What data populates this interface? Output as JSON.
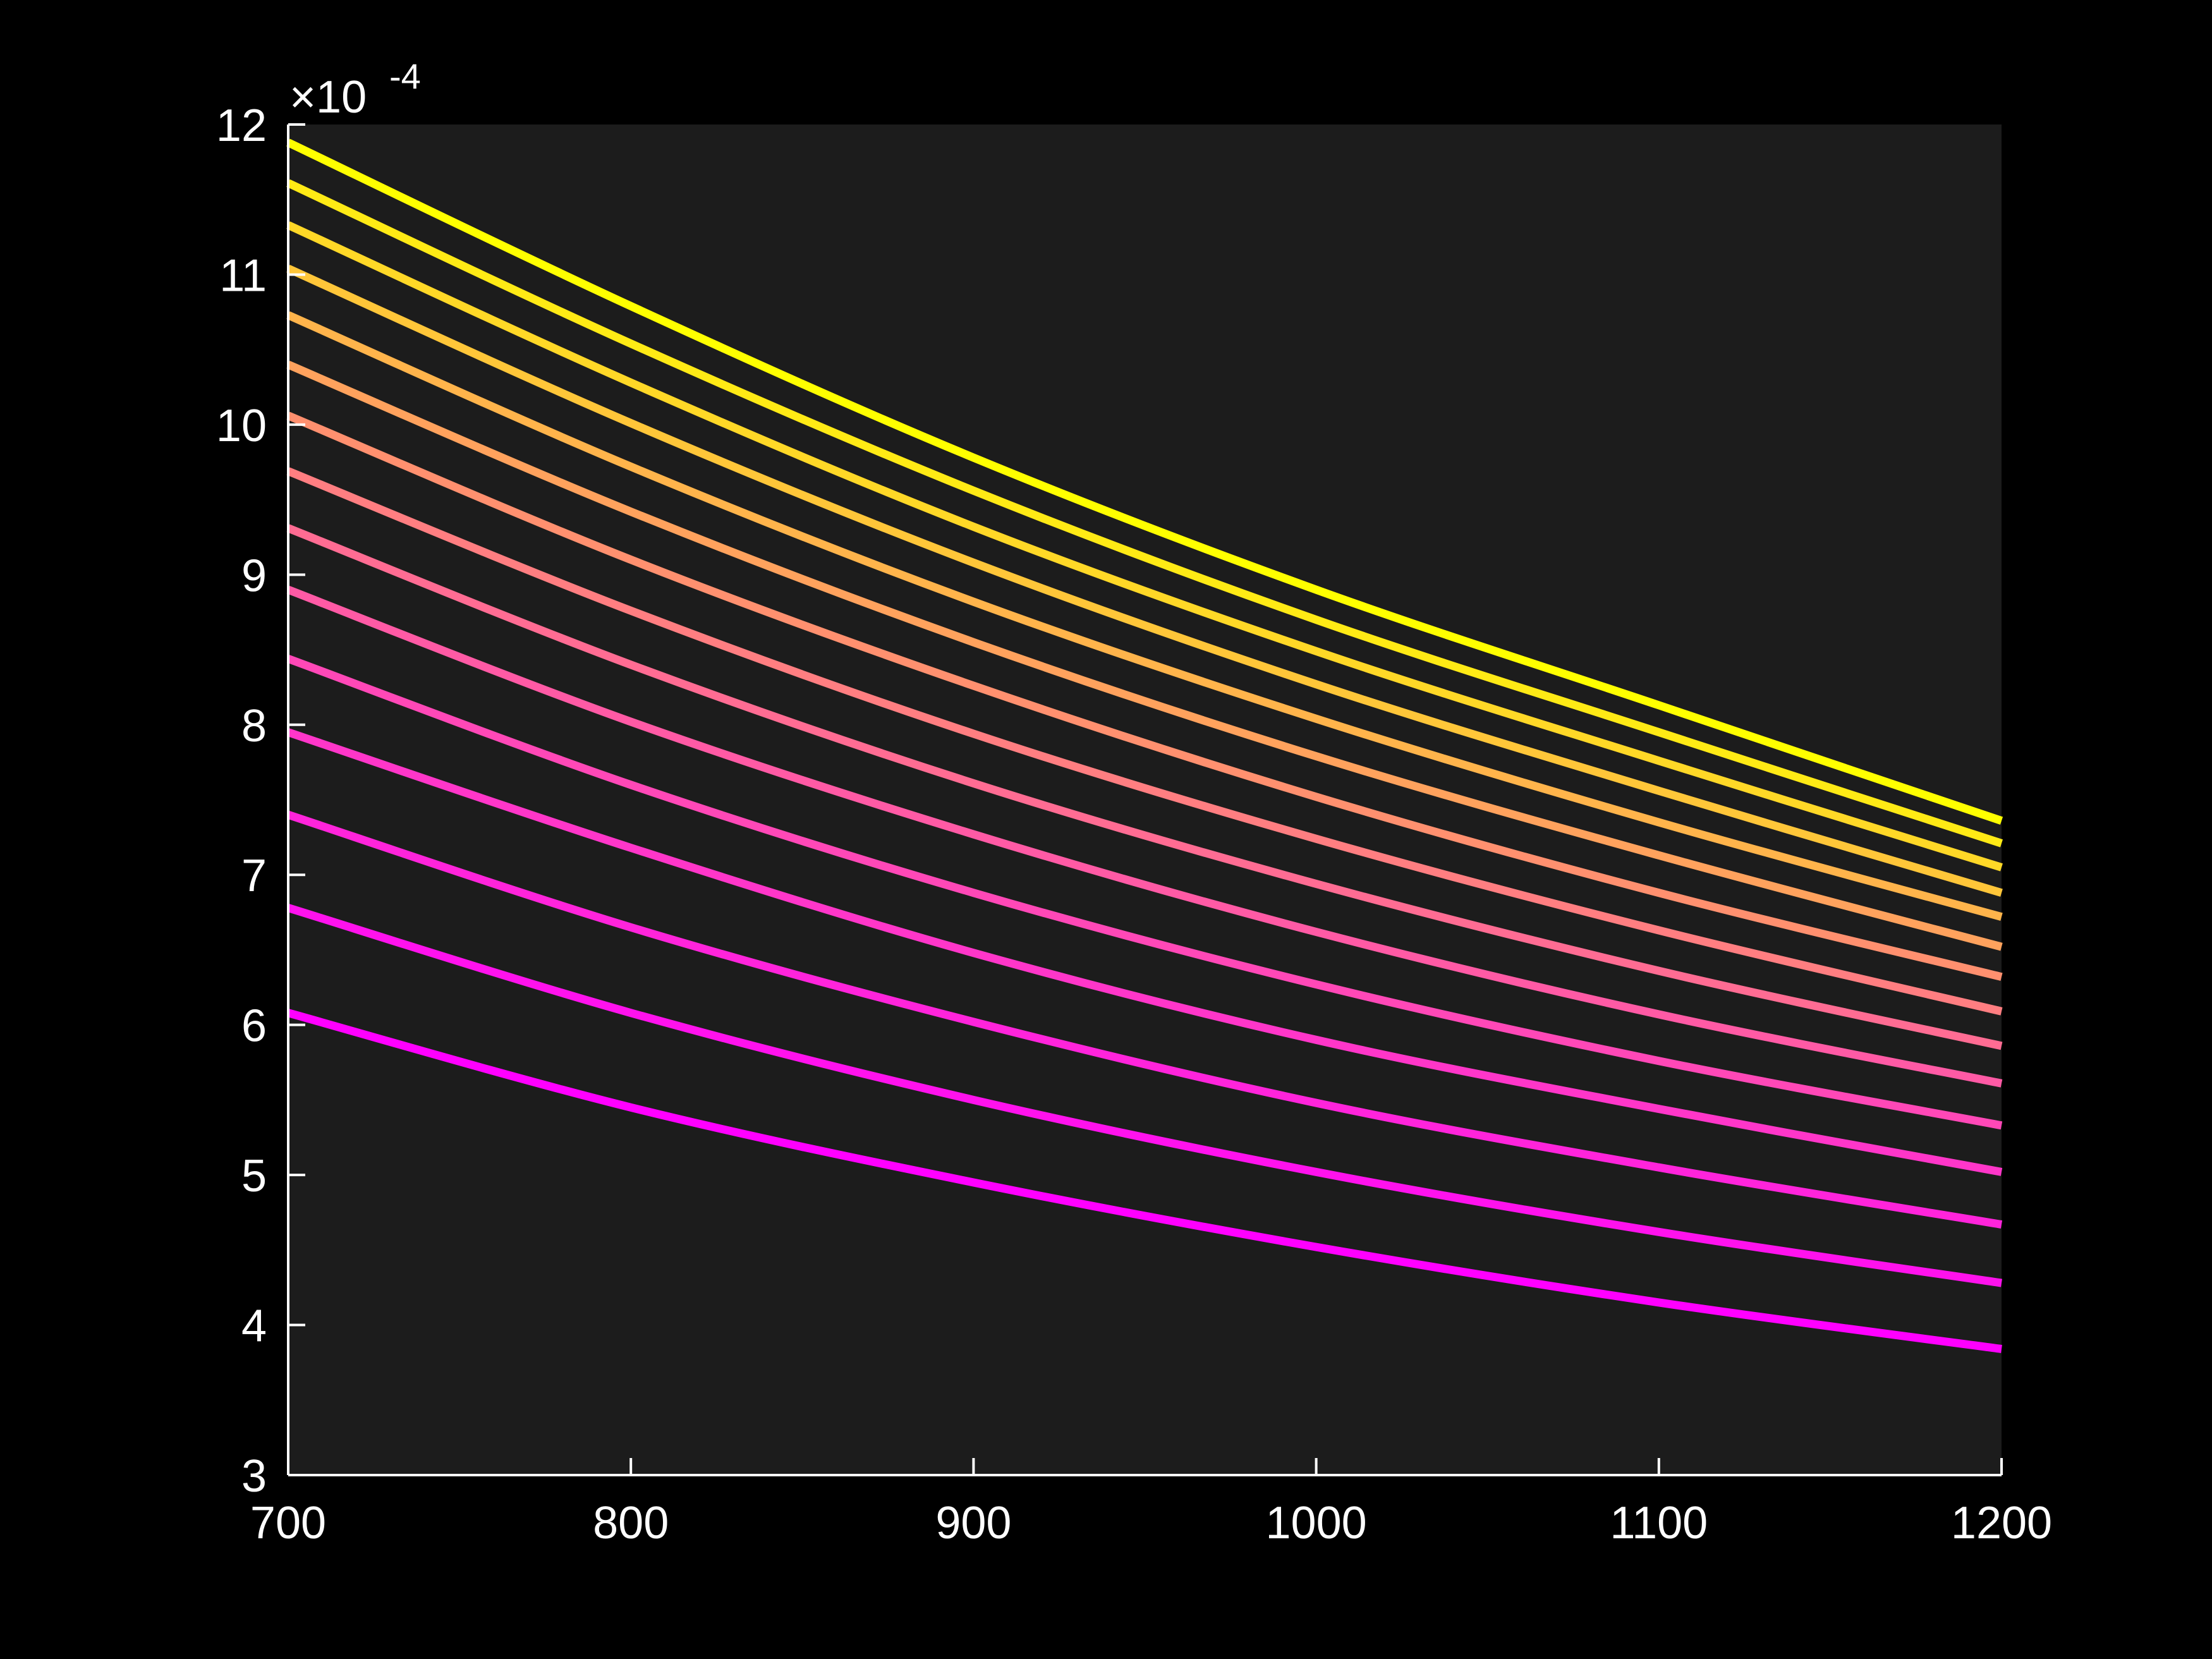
{
  "chart_data": {
    "type": "line",
    "title": "",
    "xlabel": "",
    "ylabel": "",
    "xlim": [
      700,
      1200
    ],
    "ylim": [
      3,
      12
    ],
    "y_multiplier": "×10",
    "y_exponent": "-4",
    "x_ticks": [
      "700",
      "800",
      "900",
      "1000",
      "1100",
      "1200"
    ],
    "y_ticks": [
      "3",
      "4",
      "5",
      "6",
      "7",
      "8",
      "9",
      "10",
      "11",
      "12"
    ],
    "grid": false,
    "legend": "none",
    "colors": {
      "background": "#000000",
      "axes_face": "#1c1c1c",
      "axis_line": "#ffffff"
    },
    "x": [
      700,
      800,
      900,
      1000,
      1100,
      1200
    ],
    "series": [
      {
        "color": "#ff00ff",
        "values": [
          6.08,
          5.45,
          4.95,
          4.52,
          4.15,
          3.84
        ]
      },
      {
        "color": "#ff12ed",
        "values": [
          6.78,
          6.08,
          5.5,
          5.02,
          4.62,
          4.28
        ]
      },
      {
        "color": "#ff24db",
        "values": [
          7.4,
          6.65,
          6.02,
          5.48,
          5.05,
          4.67
        ]
      },
      {
        "color": "#ff36c9",
        "values": [
          7.95,
          7.18,
          6.48,
          5.9,
          5.44,
          5.02
        ]
      },
      {
        "color": "#ff48b7",
        "values": [
          8.44,
          7.6,
          6.88,
          6.27,
          5.76,
          5.33
        ]
      },
      {
        "color": "#ff5aa5",
        "values": [
          8.9,
          8.02,
          7.27,
          6.62,
          6.07,
          5.61
        ]
      },
      {
        "color": "#ff6c93",
        "values": [
          9.31,
          8.4,
          7.61,
          6.94,
          6.36,
          5.86
        ]
      },
      {
        "color": "#ff7e81",
        "values": [
          9.69,
          8.76,
          7.94,
          7.24,
          6.63,
          6.09
        ]
      },
      {
        "color": "#ff906f",
        "values": [
          10.06,
          9.1,
          8.26,
          7.52,
          6.88,
          6.32
        ]
      },
      {
        "color": "#ffa25d",
        "values": [
          10.4,
          9.42,
          8.55,
          7.79,
          7.13,
          6.52
        ]
      },
      {
        "color": "#ffb44b",
        "values": [
          10.73,
          9.72,
          8.82,
          8.04,
          7.35,
          6.72
        ]
      },
      {
        "color": "#ffc639",
        "values": [
          11.04,
          10.01,
          9.08,
          8.27,
          7.56,
          6.88
        ]
      },
      {
        "color": "#ffd827",
        "values": [
          11.33,
          10.28,
          9.32,
          8.49,
          7.76,
          7.05
        ]
      },
      {
        "color": "#ffea15",
        "values": [
          11.61,
          10.54,
          9.56,
          8.7,
          7.95,
          7.21
        ]
      },
      {
        "color": "#ffff00",
        "values": [
          11.88,
          10.79,
          9.78,
          8.9,
          8.13,
          7.36
        ]
      }
    ]
  }
}
